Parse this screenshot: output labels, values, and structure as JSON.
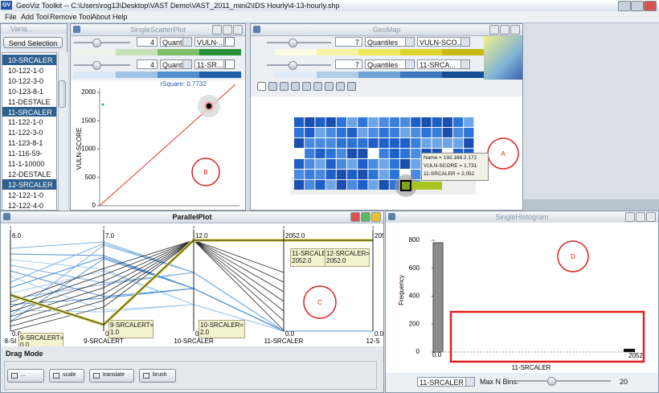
{
  "app": {
    "icon": "GV",
    "title": "GeoViz Toolkit -- C:\\Users\\rog13\\Desktop\\VAST Demo\\VAST_2011_mini2\\IDS Hourly\\4-13-hourly.shp",
    "menu": [
      "File",
      "Add Tool",
      "Remove Tool",
      "About",
      "Help"
    ]
  },
  "variables": {
    "title": "Varia...",
    "button": "Send Selection",
    "items": [
      {
        "label": "10-SRCALER",
        "selected": true
      },
      {
        "label": "10-122-1-0",
        "selected": false
      },
      {
        "label": "10-122-3-0",
        "selected": false
      },
      {
        "label": "10-123-8-1",
        "selected": false
      },
      {
        "label": "11-DESTALE",
        "selected": false
      },
      {
        "label": "11-SRCALER",
        "selected": true
      },
      {
        "label": "11-122-1-0",
        "selected": false
      },
      {
        "label": "11-122-3-0",
        "selected": false
      },
      {
        "label": "11-123-8-1",
        "selected": false
      },
      {
        "label": "11-116-59-",
        "selected": false
      },
      {
        "label": "11-1-10000",
        "selected": false
      },
      {
        "label": "12-DESTALE",
        "selected": false
      },
      {
        "label": "12-SRCALER",
        "selected": true
      },
      {
        "label": "12-122-1-0",
        "selected": false
      },
      {
        "label": "12-122-4-0",
        "selected": false
      }
    ]
  },
  "scatter": {
    "title": "SingleScatterPlot",
    "rows": [
      {
        "bins": "4",
        "method": "Quanti...",
        "variable": "VULN-..."
      },
      {
        "bins": "4",
        "method": "Quanti...",
        "variable": "11-SR..."
      }
    ],
    "stat": "rSquare: 0.7732",
    "y_label": "VULN-SCORE",
    "yticks": [
      0,
      500,
      1000,
      1500,
      2000
    ],
    "annotation": "B"
  },
  "geomap": {
    "title": "GeoMap",
    "rows": [
      {
        "bins": "7",
        "method": "Quantiles",
        "variable": "VULN-SCO..."
      },
      {
        "bins": "7",
        "method": "Quantiles",
        "variable": "11-SRCA..."
      }
    ],
    "tooltip": [
      "Name = 192.168.2.172",
      "VULN-SCORE = 1,731",
      "11-SRCALER = 2,052"
    ],
    "annotation": "A"
  },
  "parallel": {
    "title": "ParallelPlot",
    "axes": [
      {
        "name": "8-SI",
        "max": "6.0",
        "min": "0.0"
      },
      {
        "name": "9-SRCALERT",
        "max": "7.0",
        "min": "0.0"
      },
      {
        "name": "10-SRCALER",
        "max": "12.0",
        "min": "0.0"
      },
      {
        "name": "11-SRCALER",
        "max": "2052.0",
        "min": "0.0"
      },
      {
        "name": "12-S",
        "max": "205",
        "min": "0.0"
      }
    ],
    "tooltips": [
      [
        "11-SRCALE",
        "2052.0"
      ],
      [
        "12-SRCALER=",
        "2052.0"
      ],
      [
        "9-SRCALERT=",
        "0.0"
      ],
      [
        "9-SRCALERT=",
        "1.0"
      ],
      [
        "10-SRCALER=",
        "2.0"
      ]
    ],
    "drag_mode": {
      "title": "Drag Mode",
      "buttons": [
        "...",
        "scale",
        "translate",
        "brush"
      ]
    },
    "annotation": "C"
  },
  "histogram": {
    "title": "SingleHistogram",
    "y_label": "Frequency",
    "yticks": [
      0,
      200,
      400,
      600,
      800
    ],
    "x_label": "11-SRCALER",
    "x_min": "0.0",
    "x_max": "2052",
    "variable": "11-SRCALER",
    "bins_label": "Max N Bins:",
    "bins": "20",
    "annotation": "D"
  }
}
